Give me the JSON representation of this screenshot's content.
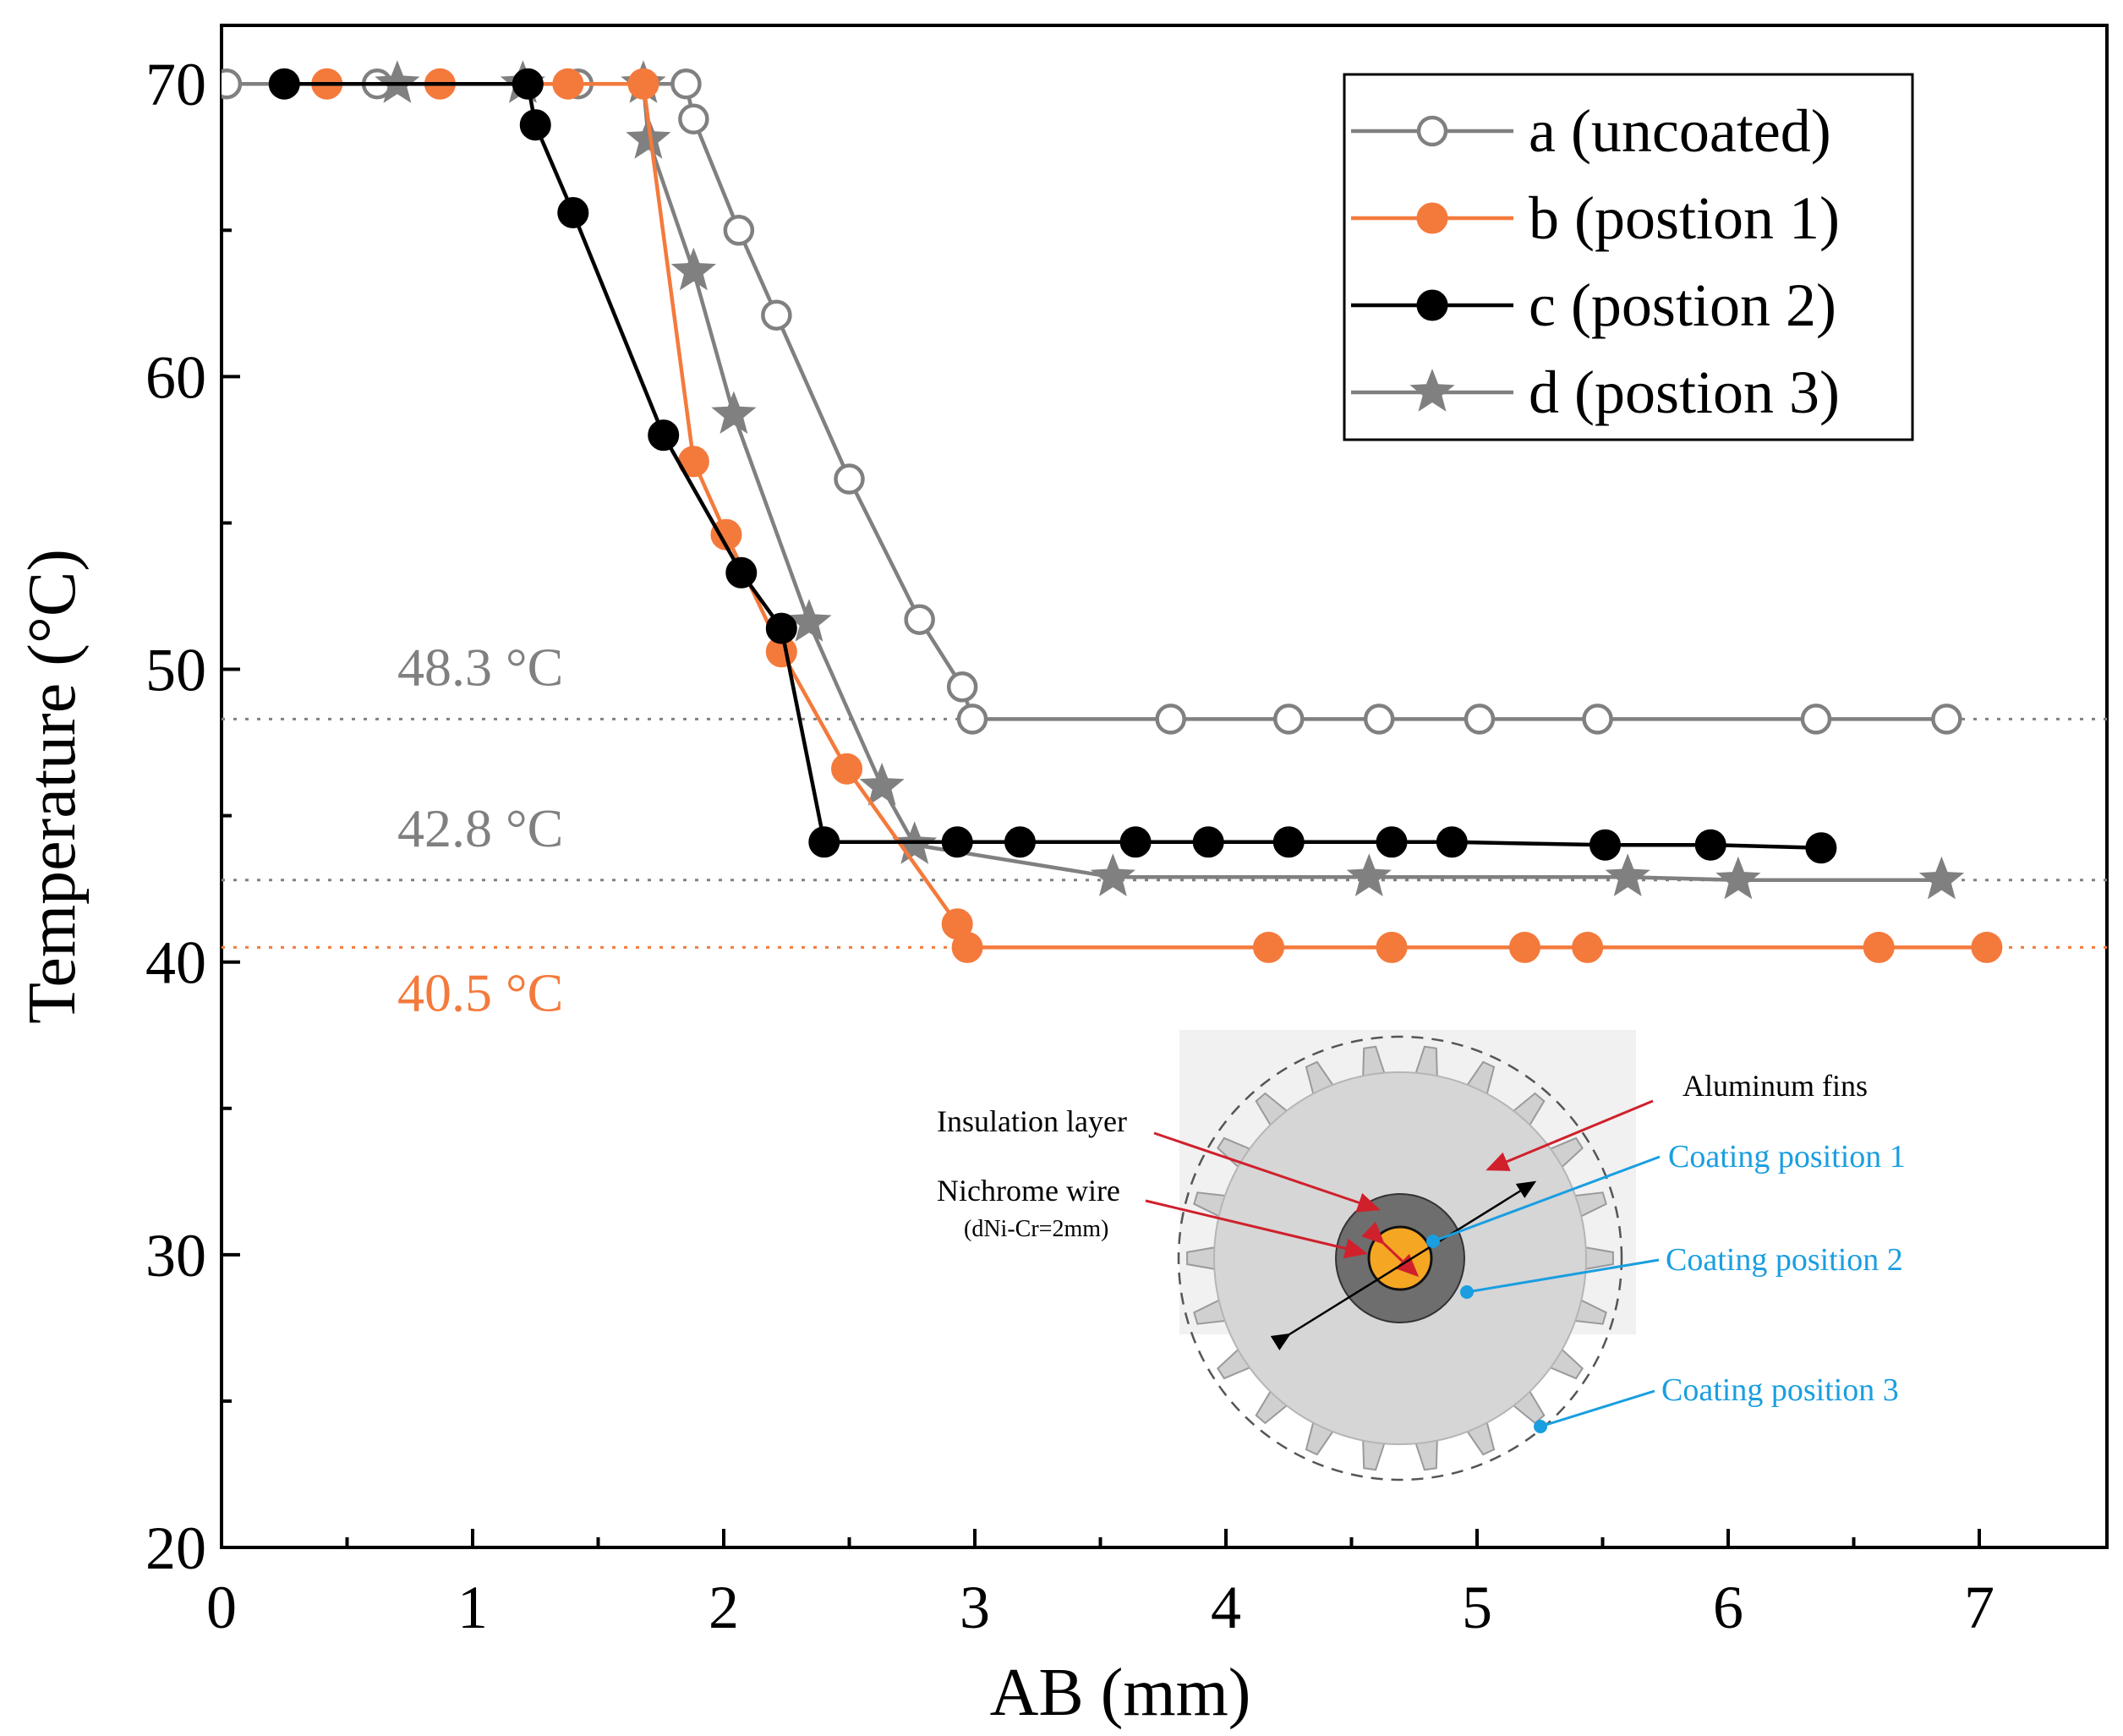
{
  "chart_data": {
    "type": "line",
    "xlabel": "AB (mm)",
    "ylabel": "Temperature (°C)",
    "xlim": [
      0,
      7.5
    ],
    "ylim": [
      20,
      72
    ],
    "xticks": [
      "0",
      "1",
      "2",
      "3",
      "4",
      "5",
      "6",
      "7"
    ],
    "yticks": [
      "20",
      "30",
      "40",
      "50",
      "60",
      "70"
    ],
    "grid": false,
    "legend_position": "top-right",
    "series": [
      {
        "name": "a (uncoated)",
        "color": "#808080",
        "marker": "open-circle",
        "x": [
          0.02,
          0.62,
          1.42,
          1.85,
          1.88,
          2.06,
          2.21,
          2.5,
          2.78,
          2.95,
          2.99,
          3.78,
          4.25,
          4.61,
          5.01,
          5.48,
          6.35,
          6.87
        ],
        "y": [
          70,
          70,
          70,
          70,
          68.8,
          65,
          62.1,
          56.5,
          51.7,
          49.4,
          48.3,
          48.3,
          48.3,
          48.3,
          48.3,
          48.3,
          48.3,
          48.3
        ]
      },
      {
        "name": "b (postion 1)",
        "color": "#f47a3c",
        "marker": "filled-circle",
        "x": [
          0.42,
          0.87,
          1.38,
          1.68,
          1.88,
          2.01,
          2.23,
          2.49,
          2.93,
          2.97,
          4.17,
          4.66,
          5.19,
          5.44,
          6.6,
          7.03
        ],
        "y": [
          70,
          70,
          70,
          70,
          57.1,
          54.6,
          50.6,
          46.6,
          41.3,
          40.5,
          40.5,
          40.5,
          40.5,
          40.5,
          40.5,
          40.5
        ]
      },
      {
        "name": "c (postion 2)",
        "color": "#000000",
        "marker": "filled-circle",
        "x": [
          0.25,
          1.22,
          1.25,
          1.4,
          1.76,
          2.07,
          2.23,
          2.4,
          2.93,
          3.18,
          3.64,
          3.93,
          4.25,
          4.66,
          4.9,
          5.51,
          5.93,
          6.37
        ],
        "y": [
          70,
          70,
          68.6,
          65.6,
          58,
          53.3,
          51.4,
          44.1,
          44.1,
          44.1,
          44.1,
          44.1,
          44.1,
          44.1,
          44.1,
          44.0,
          44.0,
          43.9
        ]
      },
      {
        "name": "d (postion 3)",
        "color": "#808080",
        "marker": "star",
        "x": [
          0.7,
          1.2,
          1.68,
          1.7,
          1.88,
          2.04,
          2.34,
          2.63,
          2.76,
          3.55,
          4.57,
          5.6,
          6.04,
          6.85
        ],
        "y": [
          70,
          70,
          70,
          68.1,
          63.6,
          58.7,
          51.6,
          46,
          44,
          42.9,
          42.9,
          42.9,
          42.8,
          42.8
        ]
      }
    ],
    "reference_lines": [
      {
        "y": 48.3,
        "label": "48.3 °C",
        "color": "#808080"
      },
      {
        "y": 42.8,
        "label": "42.8 °C",
        "color": "#808080"
      },
      {
        "y": 40.5,
        "label": "40.5 °C",
        "color": "#f47a3c"
      }
    ]
  },
  "inset": {
    "labels": {
      "insulation": "Insulation layer",
      "nichrome": "Nichrome wire",
      "diameter": "(dNi-Cr=2mm)",
      "fins": "Aluminum fins",
      "pos1": "Coating position 1",
      "pos2": "Coating position 2",
      "pos3": "Coating position 3"
    },
    "colors": {
      "fin": "#d0d0d0",
      "insulation": "#6e6e6e",
      "wire": "#f5a623",
      "arrow": "#d0202c",
      "coating": "#1a9ee0"
    }
  }
}
